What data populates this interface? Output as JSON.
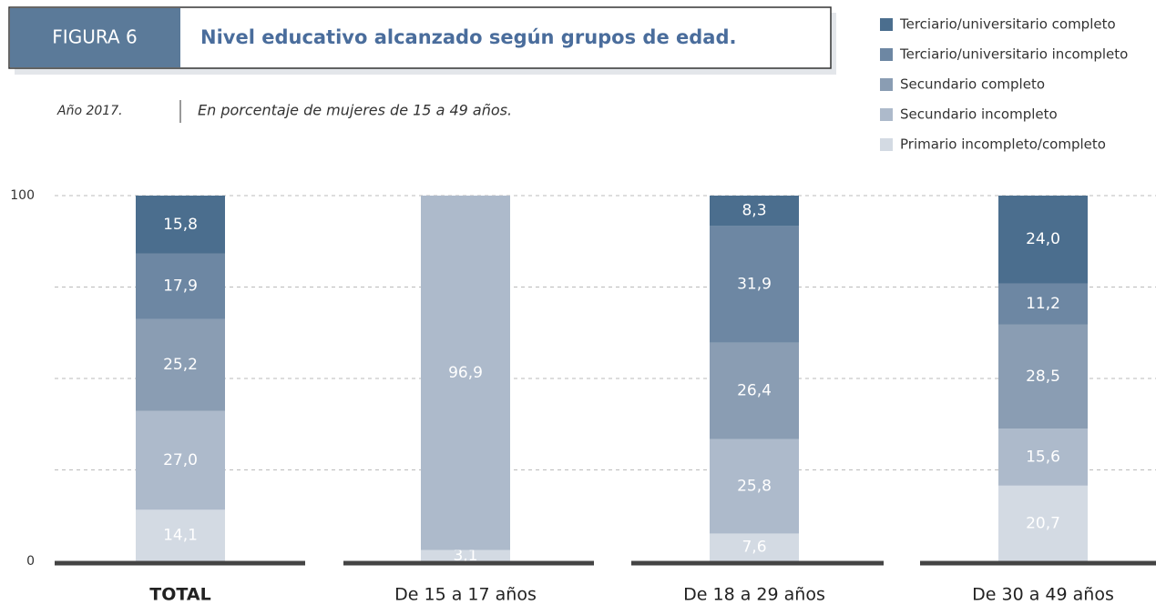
{
  "chart_data": {
    "type": "stacked_bar",
    "figure_label": "FIGURA 6",
    "title": "Nivel educativo alcanzado según grupos de edad.",
    "subtitle_year": "Año 2017.",
    "subtitle": "En porcentaje de mujeres de 15 a 49 años.",
    "categories": [
      "TOTAL",
      "De 15 a 17 años",
      "De 18 a 29 años",
      "De 30 a 49 años"
    ],
    "series": [
      {
        "name": "Primario incompleto/completo",
        "color": "#d3dae3",
        "values": [
          14.1,
          3.1,
          7.6,
          20.7
        ],
        "value_labels": [
          "14,1",
          "3,1",
          "7,6",
          "20,7"
        ]
      },
      {
        "name": "Secundario incompleto",
        "color": "#adbacb",
        "values": [
          27.0,
          96.9,
          25.8,
          15.6
        ],
        "value_labels": [
          "27,0",
          "96,9",
          "25,8",
          "15,6"
        ]
      },
      {
        "name": "Secundario completo",
        "color": "#8a9db3",
        "values": [
          25.2,
          null,
          26.4,
          28.5
        ],
        "value_labels": [
          "25,2",
          null,
          "26,4",
          "28,5"
        ]
      },
      {
        "name": "Terciario/universitario incompleto",
        "color": "#6d87a3",
        "values": [
          17.9,
          null,
          31.9,
          11.2
        ],
        "value_labels": [
          "17,9",
          null,
          "31,9",
          "11,2"
        ]
      },
      {
        "name": "Terciario/universitario completo",
        "color": "#4b6e8e",
        "values": [
          15.8,
          null,
          8.3,
          24.0
        ],
        "value_labels": [
          "15,8",
          null,
          "8,3",
          "24,0"
        ]
      }
    ],
    "ylim": [
      0,
      100
    ],
    "yticks": [
      0,
      100
    ],
    "gridlines": [
      25,
      50,
      75,
      100
    ]
  }
}
